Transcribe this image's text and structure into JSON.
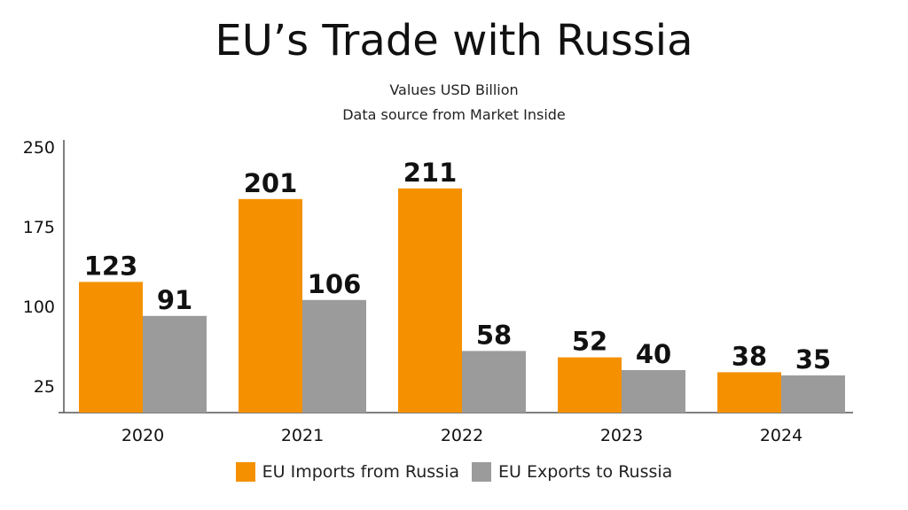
{
  "chart_data": {
    "type": "bar",
    "title": "EU’s Trade with Russia",
    "subtitle": "Values USD Billion",
    "source": "Data source from Market Inside",
    "categories": [
      "2020",
      "2021",
      "2022",
      "2023",
      "2024"
    ],
    "series": [
      {
        "name": "EU Imports from Russia",
        "color": "#F59100",
        "values": [
          123,
          201,
          211,
          52,
          38
        ]
      },
      {
        "name": "EU Exports to Russia",
        "color": "#9B9B9B",
        "values": [
          91,
          106,
          58,
          40,
          35
        ]
      }
    ],
    "yticks": [
      25,
      100,
      175,
      250
    ],
    "ylim": [
      0,
      255
    ],
    "grid": false,
    "legend": "bottom"
  }
}
